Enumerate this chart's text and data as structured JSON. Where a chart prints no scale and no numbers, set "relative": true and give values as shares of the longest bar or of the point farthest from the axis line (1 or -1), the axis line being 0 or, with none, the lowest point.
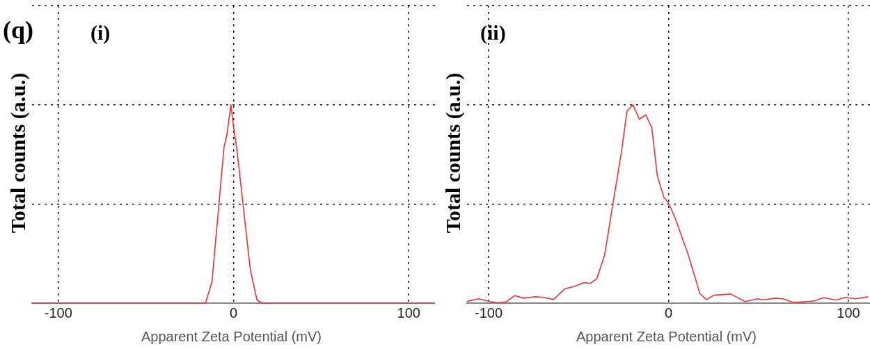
{
  "chart_data": [
    {
      "type": "line",
      "title": "(i)",
      "xlabel": "Apparent Zeta Potential (mV)",
      "ylabel": "Total counts (a.u.)",
      "annotations": [
        "(q)"
      ],
      "relative": true,
      "xlim": [
        -115,
        115
      ],
      "xticks": [
        -100,
        0,
        100
      ],
      "grid": true,
      "marker": "none",
      "line_style": "solid",
      "series": [
        {
          "color": "#e8323c",
          "x": [
            -115,
            -18.8,
            -16,
            -12.3,
            -5.4,
            -3.8,
            -1.5,
            0,
            1.9,
            9.6,
            13.4,
            16.5,
            115
          ],
          "values": [
            0,
            0,
            0,
            0.107,
            0.787,
            0.848,
            1,
            0.89,
            0.777,
            0.168,
            0.015,
            0,
            0
          ]
        }
      ]
    },
    {
      "type": "line",
      "title": "(ii)",
      "xlabel": "Apparent Zeta Potential (mV)",
      "ylabel": "Total counts (a.u.)",
      "relative": true,
      "xlim": [
        -112,
        112
      ],
      "xticks": [
        -100,
        0,
        100
      ],
      "grid": true,
      "marker": "none",
      "line_style": "solid",
      "series": [
        {
          "color": "#e8323c",
          "x": [
            -112,
            -111.1,
            -105.4,
            -99.6,
            -94.6,
            -90.4,
            -85.4,
            -80.4,
            -74.0,
            -69.0,
            -64.0,
            -57.6,
            -51.9,
            -46.9,
            -43.4,
            -39.8,
            -35.5,
            -30.5,
            -26.2,
            -23.1,
            -19.8,
            -16.2,
            -12.6,
            -9.3,
            -6.2,
            -2.6,
            0.2,
            3.8,
            11.0,
            17.4,
            21.0,
            25.3,
            34.6,
            42.5,
            49.6,
            52.5,
            59.6,
            63.9,
            69.6,
            76.8,
            81.1,
            86.1,
            93.3,
            98.3,
            104.0,
            110.9
          ],
          "values": [
            0.006,
            0.011,
            0.022,
            0.008,
            0.002,
            0.006,
            0.038,
            0.025,
            0.032,
            0.029,
            0.018,
            0.072,
            0.086,
            0.103,
            0.1,
            0.124,
            0.243,
            0.523,
            0.76,
            0.967,
            1,
            0.927,
            0.949,
            0.884,
            0.641,
            0.534,
            0.501,
            0.426,
            0.243,
            0.049,
            0.018,
            0.04,
            0.046,
            0.008,
            0.022,
            0.016,
            0.025,
            0.021,
            0.003,
            0.008,
            0.011,
            0.027,
            0.016,
            0.029,
            0.022,
            0.032
          ]
        }
      ]
    }
  ]
}
